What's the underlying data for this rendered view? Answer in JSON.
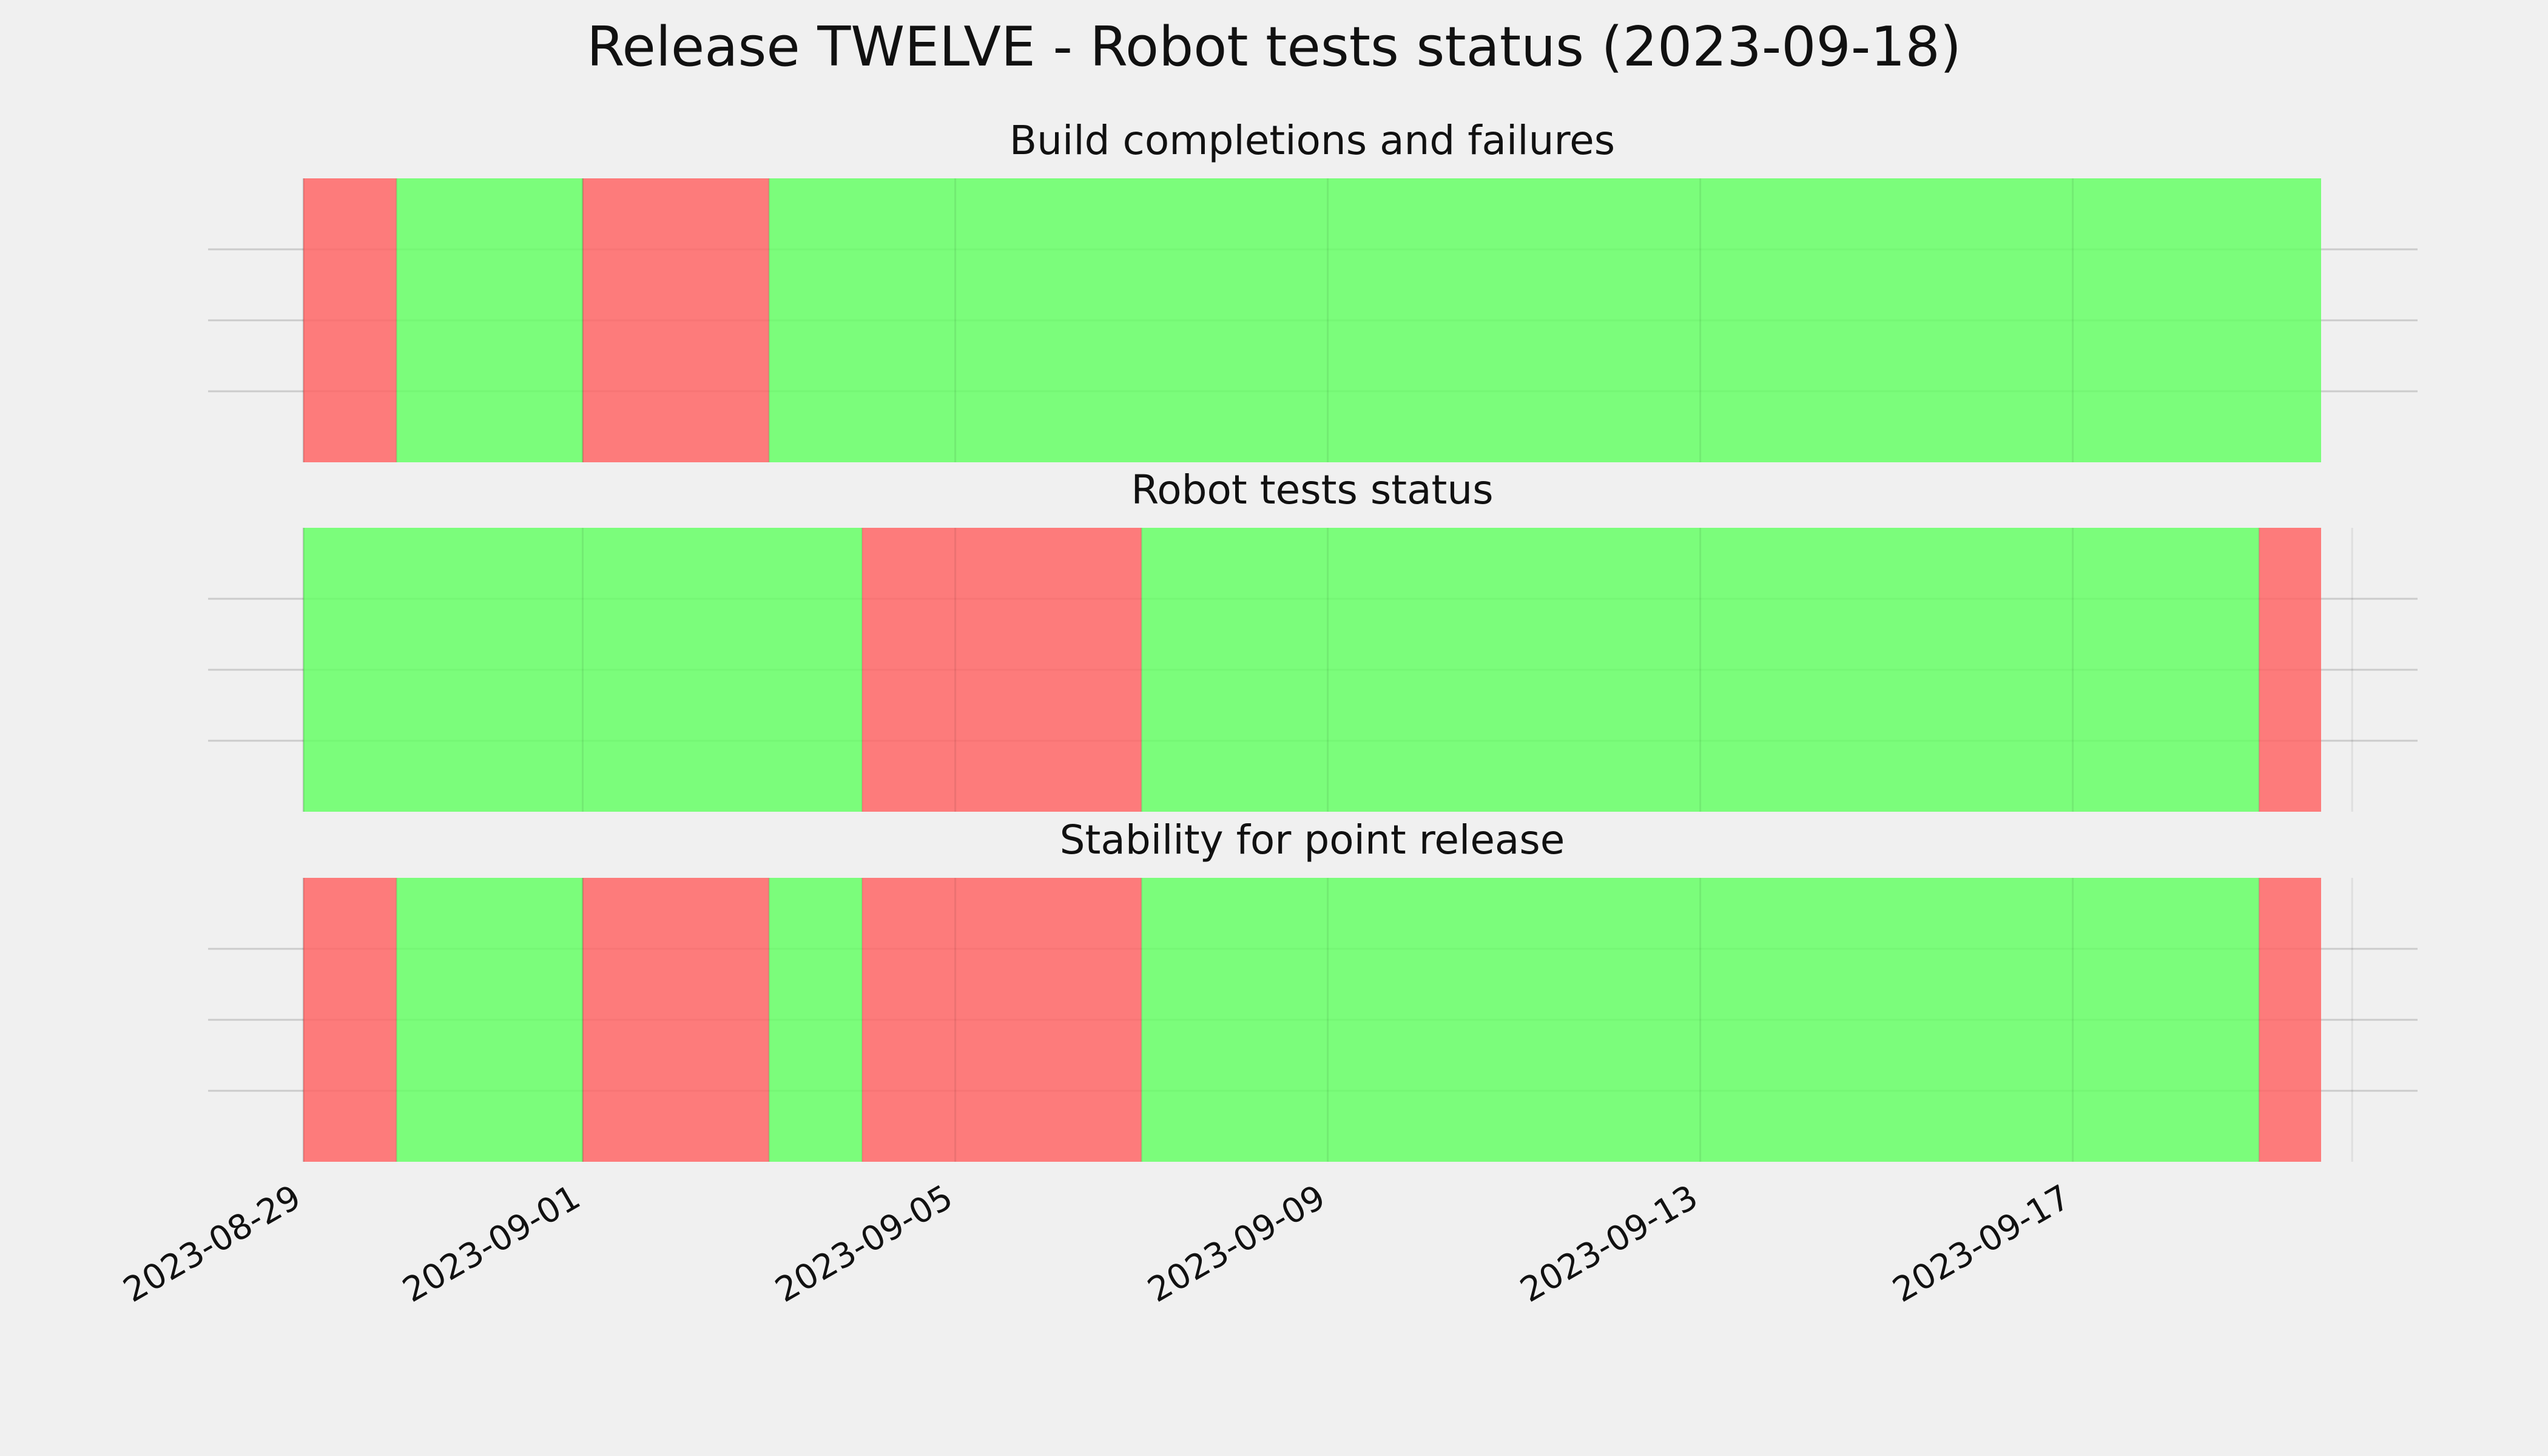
{
  "figure": {
    "title": "Release TWELVE - Robot tests status (2023-09-18)",
    "background_color": "#f0f0f0"
  },
  "chart_data": {
    "type": "status-timeline",
    "x_type": "date",
    "xlim": [
      "2023-08-29",
      "2023-09-19T16:00"
    ],
    "x_ticks": [
      "2023-08-29",
      "2023-09-01",
      "2023-09-05",
      "2023-09-09",
      "2023-09-13",
      "2023-09-17"
    ],
    "x_tick_rotation_deg": 30,
    "grid": true,
    "status_colors": {
      "pass": "#66ff66",
      "fail": "#ff6666",
      "opacity": 0.85
    },
    "panels": [
      {
        "title": "Build completions and failures",
        "segments": [
          {
            "start": "2023-08-29",
            "end": "2023-08-30",
            "status": "fail"
          },
          {
            "start": "2023-08-30",
            "end": "2023-09-01",
            "status": "pass"
          },
          {
            "start": "2023-09-01",
            "end": "2023-09-03",
            "status": "fail"
          },
          {
            "start": "2023-09-03",
            "end": "2023-09-19T16:00",
            "status": "pass"
          }
        ]
      },
      {
        "title": "Robot tests status",
        "segments": [
          {
            "start": "2023-08-29",
            "end": "2023-09-04",
            "status": "pass"
          },
          {
            "start": "2023-09-04",
            "end": "2023-09-07",
            "status": "fail"
          },
          {
            "start": "2023-09-07",
            "end": "2023-09-19",
            "status": "pass"
          },
          {
            "start": "2023-09-19",
            "end": "2023-09-20",
            "status": "fail"
          },
          {
            "start": "2023-09-20",
            "end": "2023-09-19T16:00",
            "status": "pass"
          }
        ]
      },
      {
        "title": "Stability for point release",
        "segments": [
          {
            "start": "2023-08-29",
            "end": "2023-08-30",
            "status": "fail"
          },
          {
            "start": "2023-08-30",
            "end": "2023-09-01",
            "status": "pass"
          },
          {
            "start": "2023-09-01",
            "end": "2023-09-03",
            "status": "fail"
          },
          {
            "start": "2023-09-03",
            "end": "2023-09-04",
            "status": "pass"
          },
          {
            "start": "2023-09-04",
            "end": "2023-09-07",
            "status": "fail"
          },
          {
            "start": "2023-09-07",
            "end": "2023-09-19",
            "status": "pass"
          },
          {
            "start": "2023-09-19",
            "end": "2023-09-20",
            "status": "fail"
          },
          {
            "start": "2023-09-20",
            "end": "2023-09-19T16:00",
            "status": "pass"
          }
        ]
      }
    ]
  }
}
